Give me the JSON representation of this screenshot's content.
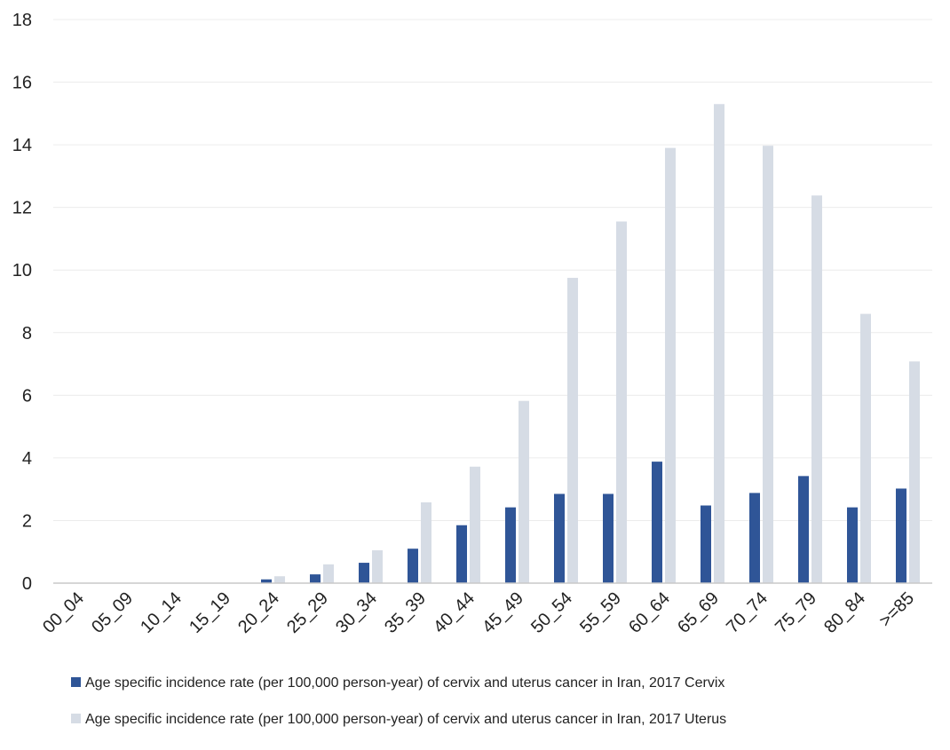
{
  "chart_data": {
    "type": "bar",
    "title": "",
    "xlabel": "",
    "ylabel": "",
    "ylim": [
      0,
      18
    ],
    "yticks": [
      0,
      2,
      4,
      6,
      8,
      10,
      12,
      14,
      16,
      18
    ],
    "grid": true,
    "legend_position": "bottom",
    "categories": [
      "00_04",
      "05_09",
      "10_14",
      "15_19",
      "20_24",
      "25_29",
      "30_34",
      "35_39",
      "40_44",
      "45_49",
      "50_54",
      "55_59",
      "60_64",
      "65_69",
      "70_74",
      "75_79",
      "80_84",
      ">=85"
    ],
    "series": [
      {
        "name": "Age specific incidence rate (per 100,000 person-year) of cervix and uterus cancer in Iran, 2017 Cervix",
        "color": "#2f5597",
        "values": [
          0,
          0,
          0,
          0,
          0.12,
          0.28,
          0.65,
          1.1,
          1.85,
          2.42,
          2.85,
          2.85,
          3.88,
          2.48,
          2.88,
          3.42,
          2.42,
          3.02
        ]
      },
      {
        "name": "Age specific incidence rate (per 100,000 person-year) of cervix and uterus cancer in Iran, 2017 Uterus",
        "color": "#d6dce5",
        "values": [
          0,
          0,
          0,
          0,
          0.22,
          0.6,
          1.05,
          2.58,
          3.72,
          5.82,
          9.75,
          11.55,
          13.9,
          15.3,
          13.97,
          12.38,
          8.6,
          7.08
        ]
      }
    ]
  }
}
